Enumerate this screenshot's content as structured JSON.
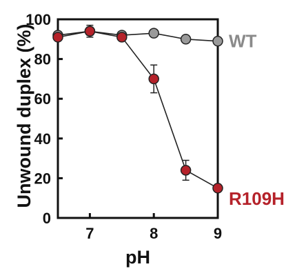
{
  "chart_data": {
    "type": "line",
    "title": "",
    "xlabel": "pH",
    "ylabel": "Unwound duplex (%)",
    "xlim": [
      6.5,
      9
    ],
    "ylim": [
      0,
      100
    ],
    "xticks": [
      7,
      8,
      9
    ],
    "yticks": [
      0,
      20,
      40,
      60,
      80,
      100
    ],
    "grid": false,
    "legend": "labels at line ends (right)",
    "series": [
      {
        "name": "WT",
        "color": "#8a8a8a",
        "marker_color": "#9a9a9a",
        "x": [
          6.5,
          7,
          7.5,
          8,
          8.5,
          9
        ],
        "y": [
          92,
          94,
          92,
          93,
          90,
          89
        ],
        "error": [
          1.5,
          2,
          1,
          1.5,
          1.5,
          1
        ]
      },
      {
        "name": "R109H",
        "color": "#b5222a",
        "marker_color": "#b5222a",
        "x": [
          6.5,
          7,
          7.5,
          8,
          8.5,
          9
        ],
        "y": [
          91,
          94,
          91,
          70,
          24,
          15
        ],
        "error": [
          1.5,
          3,
          1,
          7,
          5,
          1
        ]
      }
    ]
  }
}
